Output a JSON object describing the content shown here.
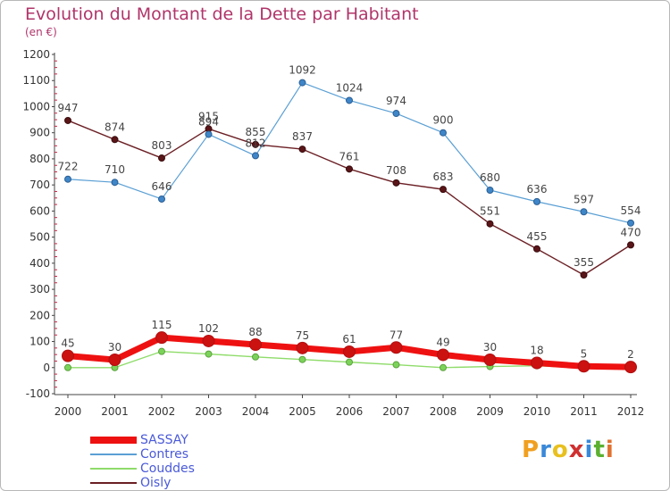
{
  "title": "Evolution du Montant de la Dette par Habitant",
  "subtitle": "(en €)",
  "brand": {
    "letters": [
      "P",
      "r",
      "o",
      "x",
      "i",
      "t",
      "i"
    ],
    "colors": [
      "#f0a020",
      "#3a88d8",
      "#e8c020",
      "#d03030",
      "#3a88d8",
      "#5bb030",
      "#e07030"
    ]
  },
  "chart_data": {
    "type": "line",
    "categories": [
      "2000",
      "2001",
      "2002",
      "2003",
      "2004",
      "2005",
      "2006",
      "2007",
      "2008",
      "2009",
      "2010",
      "2011",
      "2012"
    ],
    "ylim": [
      -100,
      1200
    ],
    "yticks": [
      -100,
      0,
      100,
      200,
      300,
      400,
      500,
      600,
      700,
      800,
      900,
      1000,
      1100,
      1200
    ],
    "grid": false,
    "legend_position": "bottom-left",
    "series": [
      {
        "name": "Oisly",
        "color": "#6b1f24",
        "values": [
          947,
          874,
          803,
          915,
          855,
          837,
          761,
          708,
          683,
          551,
          455,
          355,
          470
        ]
      },
      {
        "name": "Contres",
        "color": "#5a9fd4",
        "values": [
          722,
          710,
          646,
          894,
          812,
          1092,
          1024,
          974,
          900,
          680,
          636,
          597,
          554
        ]
      },
      {
        "name": "Couddes",
        "color": "#8fdc6a",
        "values": [
          0,
          0,
          62,
          52,
          41,
          31,
          21,
          11,
          0,
          4,
          7,
          -1,
          -1
        ]
      },
      {
        "name": "SASSAY",
        "color": "#ee1111",
        "values": [
          45,
          30,
          115,
          102,
          88,
          75,
          61,
          77,
          49,
          30,
          18,
          5,
          2
        ]
      }
    ]
  },
  "legend": [
    {
      "name": "SASSAY",
      "color": "#ee1111"
    },
    {
      "name": "Contres",
      "color": "#5a9fd4"
    },
    {
      "name": "Couddes",
      "color": "#8fdc6a"
    },
    {
      "name": "Oisly",
      "color": "#6b1f24"
    }
  ]
}
